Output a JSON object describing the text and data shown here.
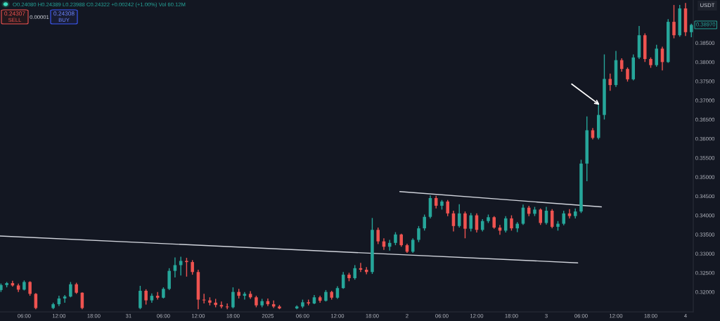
{
  "chart_data": {
    "type": "candlestick",
    "x": [
      "2024-12-30T02:00",
      "2024-12-30T03:00",
      "2024-12-30T04:00",
      "2024-12-30T05:00",
      "2024-12-30T06:00",
      "2024-12-30T07:00",
      "2024-12-30T08:00",
      "2024-12-30T11:00",
      "2024-12-30T12:00",
      "2024-12-30T13:00",
      "2024-12-30T14:00",
      "2024-12-30T15:00",
      "2024-12-30T16:00",
      "2024-12-31T02:00",
      "2024-12-31T03:00",
      "2024-12-31T04:00",
      "2024-12-31T05:00",
      "2024-12-31T06:00",
      "2024-12-31T07:00",
      "2024-12-31T08:00",
      "2024-12-31T09:00",
      "2024-12-31T10:00",
      "2024-12-31T11:00",
      "2024-12-31T12:00",
      "2024-12-31T13:00",
      "2024-12-31T14:00",
      "2024-12-31T15:00",
      "2024-12-31T16:00",
      "2024-12-31T17:00",
      "2024-12-31T18:00",
      "2024-12-31T19:00",
      "2024-12-31T20:00",
      "2024-12-31T21:00",
      "2024-12-31T22:00",
      "2024-12-31T23:00",
      "2025-01-01T00:00",
      "2025-01-01T01:00",
      "2025-01-01T02:00",
      "2025-01-01T05:00",
      "2025-01-01T06:00",
      "2025-01-01T07:00",
      "2025-01-01T08:00",
      "2025-01-01T09:00",
      "2025-01-01T10:00",
      "2025-01-01T11:00",
      "2025-01-01T12:00",
      "2025-01-01T13:00",
      "2025-01-01T14:00",
      "2025-01-01T15:00",
      "2025-01-01T16:00",
      "2025-01-01T17:00",
      "2025-01-01T18:00",
      "2025-01-01T19:00",
      "2025-01-01T20:00",
      "2025-01-01T21:00",
      "2025-01-01T22:00",
      "2025-01-01T23:00",
      "2025-01-02T00:00",
      "2025-01-02T01:00",
      "2025-01-02T02:00",
      "2025-01-02T03:00",
      "2025-01-02T04:00",
      "2025-01-02T05:00",
      "2025-01-02T06:00",
      "2025-01-02T07:00",
      "2025-01-02T08:00",
      "2025-01-02T09:00",
      "2025-01-02T10:00",
      "2025-01-02T11:00",
      "2025-01-02T12:00",
      "2025-01-02T13:00",
      "2025-01-02T14:00",
      "2025-01-02T15:00",
      "2025-01-02T16:00",
      "2025-01-02T17:00",
      "2025-01-02T18:00",
      "2025-01-02T19:00",
      "2025-01-02T20:00",
      "2025-01-02T21:00",
      "2025-01-02T22:00",
      "2025-01-02T23:00",
      "2025-01-03T00:00",
      "2025-01-03T01:00",
      "2025-01-03T02:00",
      "2025-01-03T03:00",
      "2025-01-03T04:00",
      "2025-01-03T05:00",
      "2025-01-03T06:00",
      "2025-01-03T07:00",
      "2025-01-03T08:00",
      "2025-01-03T09:00",
      "2025-01-03T10:00",
      "2025-01-03T11:00",
      "2025-01-03T12:00",
      "2025-01-03T13:00",
      "2025-01-03T14:00",
      "2025-01-03T15:00",
      "2025-01-03T16:00",
      "2025-01-03T17:00",
      "2025-01-03T18:00",
      "2025-01-03T19:00",
      "2025-01-03T20:00",
      "2025-01-03T21:00",
      "2025-01-03T22:00",
      "2025-01-03T23:00",
      "2025-01-04T00:00",
      "2025-01-04T01:00"
    ],
    "ohlc": [
      [
        0.3205,
        0.3222,
        0.32,
        0.3218
      ],
      [
        0.3218,
        0.3226,
        0.3212,
        0.3223
      ],
      [
        0.3223,
        0.3229,
        0.3214,
        0.3217
      ],
      [
        0.3217,
        0.3222,
        0.32,
        0.3206
      ],
      [
        0.3206,
        0.323,
        0.3204,
        0.3226
      ],
      [
        0.3226,
        0.3228,
        0.319,
        0.3195
      ],
      [
        0.3195,
        0.3197,
        0.3155,
        0.3158
      ],
      [
        0.3158,
        0.3172,
        0.3155,
        0.3168
      ],
      [
        0.3168,
        0.319,
        0.3163,
        0.3183
      ],
      [
        0.3183,
        0.3192,
        0.3172,
        0.3188
      ],
      [
        0.3188,
        0.3226,
        0.3186,
        0.322
      ],
      [
        0.322,
        0.3224,
        0.3195,
        0.3198
      ],
      [
        0.3198,
        0.3199,
        0.3155,
        0.3158
      ],
      [
        0.3158,
        0.3216,
        0.3155,
        0.3203
      ],
      [
        0.3203,
        0.3207,
        0.3167,
        0.3178
      ],
      [
        0.3178,
        0.3196,
        0.3172,
        0.319
      ],
      [
        0.319,
        0.32,
        0.318,
        0.3185
      ],
      [
        0.3185,
        0.3212,
        0.3183,
        0.3208
      ],
      [
        0.3208,
        0.3262,
        0.3205,
        0.3255
      ],
      [
        0.3255,
        0.329,
        0.3238,
        0.327
      ],
      [
        0.327,
        0.3292,
        0.3243,
        0.3281
      ],
      [
        0.3281,
        0.3289,
        0.324,
        0.3278
      ],
      [
        0.3278,
        0.3283,
        0.3245,
        0.3252
      ],
      [
        0.3252,
        0.3258,
        0.3155,
        0.318
      ],
      [
        0.318,
        0.3195,
        0.317,
        0.3178
      ],
      [
        0.3178,
        0.3186,
        0.3165,
        0.3172
      ],
      [
        0.3172,
        0.3182,
        0.316,
        0.3166
      ],
      [
        0.3166,
        0.3175,
        0.3157,
        0.3162
      ],
      [
        0.3162,
        0.317,
        0.3155,
        0.316
      ],
      [
        0.316,
        0.3212,
        0.3157,
        0.32
      ],
      [
        0.32,
        0.3208,
        0.3183,
        0.319
      ],
      [
        0.319,
        0.32,
        0.318,
        0.3195
      ],
      [
        0.3195,
        0.3202,
        0.3182,
        0.3186
      ],
      [
        0.3186,
        0.319,
        0.316,
        0.3165
      ],
      [
        0.3165,
        0.3182,
        0.316,
        0.3176
      ],
      [
        0.3176,
        0.3183,
        0.3163,
        0.3168
      ],
      [
        0.3168,
        0.3178,
        0.3158,
        0.3162
      ],
      [
        0.3162,
        0.3166,
        0.3155,
        0.3157
      ],
      [
        0.3157,
        0.3165,
        0.3155,
        0.3162
      ],
      [
        0.3162,
        0.318,
        0.3158,
        0.3173
      ],
      [
        0.3173,
        0.318,
        0.3165,
        0.317
      ],
      [
        0.317,
        0.3192,
        0.3168,
        0.3186
      ],
      [
        0.3186,
        0.319,
        0.3172,
        0.3177
      ],
      [
        0.3177,
        0.3205,
        0.3175,
        0.32
      ],
      [
        0.32,
        0.3203,
        0.318,
        0.3185
      ],
      [
        0.3185,
        0.3215,
        0.3182,
        0.321
      ],
      [
        0.321,
        0.3252,
        0.3208,
        0.3245
      ],
      [
        0.3245,
        0.325,
        0.3228,
        0.3236
      ],
      [
        0.3236,
        0.327,
        0.3232,
        0.3262
      ],
      [
        0.3262,
        0.3276,
        0.3252,
        0.3258
      ],
      [
        0.3258,
        0.3265,
        0.3246,
        0.3252
      ],
      [
        0.3252,
        0.3393,
        0.3247,
        0.3362
      ],
      [
        0.3362,
        0.3368,
        0.3325,
        0.3332
      ],
      [
        0.3332,
        0.334,
        0.331,
        0.3318
      ],
      [
        0.3318,
        0.3336,
        0.3308,
        0.3328
      ],
      [
        0.3328,
        0.3356,
        0.3322,
        0.335
      ],
      [
        0.335,
        0.3352,
        0.3318,
        0.3322
      ],
      [
        0.3322,
        0.3326,
        0.3302,
        0.3305
      ],
      [
        0.3305,
        0.334,
        0.3302,
        0.3336
      ],
      [
        0.3336,
        0.3372,
        0.333,
        0.3366
      ],
      [
        0.3366,
        0.3402,
        0.336,
        0.3396
      ],
      [
        0.3396,
        0.3452,
        0.3392,
        0.3445
      ],
      [
        0.3445,
        0.3451,
        0.3418,
        0.3425
      ],
      [
        0.3425,
        0.344,
        0.3415,
        0.3436
      ],
      [
        0.3436,
        0.344,
        0.3398,
        0.3405
      ],
      [
        0.3405,
        0.3412,
        0.3358,
        0.3372
      ],
      [
        0.3372,
        0.3429,
        0.3368,
        0.3405
      ],
      [
        0.3405,
        0.341,
        0.334,
        0.3365
      ],
      [
        0.3365,
        0.3406,
        0.3358,
        0.34
      ],
      [
        0.34,
        0.3405,
        0.3355,
        0.3362
      ],
      [
        0.3362,
        0.339,
        0.3358,
        0.3385
      ],
      [
        0.3385,
        0.3402,
        0.338,
        0.3395
      ],
      [
        0.3395,
        0.3398,
        0.3365,
        0.3368
      ],
      [
        0.3368,
        0.3375,
        0.3349,
        0.336
      ],
      [
        0.336,
        0.3398,
        0.3355,
        0.3392
      ],
      [
        0.3392,
        0.34,
        0.336,
        0.3366
      ],
      [
        0.3366,
        0.3382,
        0.3356,
        0.3378
      ],
      [
        0.3378,
        0.3428,
        0.3375,
        0.342
      ],
      [
        0.342,
        0.3425,
        0.3398,
        0.3404
      ],
      [
        0.3404,
        0.3422,
        0.3398,
        0.3415
      ],
      [
        0.3415,
        0.3418,
        0.3375,
        0.338
      ],
      [
        0.338,
        0.3422,
        0.3376,
        0.3412
      ],
      [
        0.3412,
        0.3416,
        0.3366,
        0.337
      ],
      [
        0.337,
        0.3385,
        0.336,
        0.3378
      ],
      [
        0.3378,
        0.3412,
        0.3374,
        0.3405
      ],
      [
        0.3405,
        0.3416,
        0.3392,
        0.3398
      ],
      [
        0.3398,
        0.3418,
        0.3392,
        0.341
      ],
      [
        0.341,
        0.3545,
        0.3406,
        0.3535
      ],
      [
        0.3535,
        0.3658,
        0.3489,
        0.3622
      ],
      [
        0.3622,
        0.3628,
        0.3598,
        0.3602
      ],
      [
        0.3602,
        0.3693,
        0.3598,
        0.3662
      ],
      [
        0.3662,
        0.382,
        0.365,
        0.3756
      ],
      [
        0.3756,
        0.377,
        0.3725,
        0.374
      ],
      [
        0.374,
        0.3829,
        0.3735,
        0.3805
      ],
      [
        0.3805,
        0.381,
        0.3775,
        0.3782
      ],
      [
        0.3782,
        0.3786,
        0.3749,
        0.3755
      ],
      [
        0.3755,
        0.382,
        0.3752,
        0.3812
      ],
      [
        0.3812,
        0.3894,
        0.3808,
        0.387
      ],
      [
        0.387,
        0.3875,
        0.38,
        0.3808
      ],
      [
        0.3808,
        0.3812,
        0.3785,
        0.3792
      ],
      [
        0.3792,
        0.3845,
        0.3788,
        0.3835
      ],
      [
        0.3835,
        0.384,
        0.3778,
        0.38
      ],
      [
        0.38,
        0.3912,
        0.3798,
        0.3905
      ],
      [
        0.3905,
        0.3949,
        0.3862,
        0.387
      ],
      [
        0.387,
        0.3949,
        0.3866,
        0.394
      ],
      [
        0.394,
        0.3954,
        0.3868,
        0.3878
      ],
      [
        0.3878,
        0.39,
        0.3865,
        0.3897
      ]
    ],
    "colors": [
      "#26a69a",
      "#26a69a",
      "#ef5350",
      "#ef5350",
      "#26a69a",
      "#ef5350",
      "#ef5350",
      "#26a69a",
      "#26a69a",
      "#26a69a",
      "#26a69a",
      "#ef5350",
      "#ef5350",
      "#26a69a",
      "#ef5350",
      "#26a69a",
      "#ef5350",
      "#26a69a",
      "#26a69a",
      "#26a69a",
      "#26a69a",
      "#ef5350",
      "#ef5350",
      "#ef5350",
      "#ef5350",
      "#ef5350",
      "#ef5350",
      "#ef5350",
      "#ef5350",
      "#26a69a",
      "#ef5350",
      "#26a69a",
      "#ef5350",
      "#ef5350",
      "#26a69a",
      "#ef5350",
      "#ef5350",
      "#ef5350",
      "#26a69a",
      "#26a69a",
      "#ef5350",
      "#26a69a",
      "#ef5350",
      "#26a69a",
      "#ef5350",
      "#26a69a",
      "#26a69a",
      "#ef5350",
      "#26a69a",
      "#ef5350",
      "#ef5350",
      "#26a69a",
      "#ef5350",
      "#ef5350",
      "#26a69a",
      "#26a69a",
      "#ef5350",
      "#ef5350",
      "#26a69a",
      "#26a69a",
      "#26a69a",
      "#26a69a",
      "#ef5350",
      "#26a69a",
      "#ef5350",
      "#ef5350",
      "#26a69a",
      "#ef5350",
      "#26a69a",
      "#ef5350",
      "#26a69a",
      "#26a69a",
      "#ef5350",
      "#ef5350",
      "#26a69a",
      "#ef5350",
      "#26a69a",
      "#26a69a",
      "#ef5350",
      "#26a69a",
      "#ef5350",
      "#26a69a",
      "#ef5350",
      "#26a69a",
      "#26a69a",
      "#ef5350",
      "#26a69a",
      "#26a69a",
      "#26a69a",
      "#ef5350",
      "#26a69a",
      "#26a69a",
      "#ef5350",
      "#26a69a",
      "#ef5350",
      "#ef5350",
      "#26a69a",
      "#26a69a",
      "#ef5350",
      "#ef5350",
      "#26a69a",
      "#ef5350",
      "#26a69a",
      "#ef5350",
      "#26a69a",
      "#ef5350",
      "#26a69a"
    ],
    "series": [
      {
        "type": "line",
        "color": "#d1d4dc",
        "x": [
          "2024-12-30T01:50",
          "2025-01-03T05:25"
        ],
        "values": [
          0.3346,
          0.3276
        ]
      },
      {
        "type": "line",
        "color": "#d1d4dc",
        "x": [
          "2025-01-01T22:45",
          "2025-01-03T09:30"
        ],
        "values": [
          0.3462,
          0.3422
        ]
      }
    ],
    "xlim": [
      "2024-12-30T01:50",
      "2025-01-04T01:20"
    ],
    "xticks": [
      {
        "value": "2024-12-30T06:00",
        "label": "06:00"
      },
      {
        "value": "2024-12-30T12:00",
        "label": "12:00"
      },
      {
        "value": "2024-12-30T18:00",
        "label": "18:00"
      },
      {
        "value": "2024-12-31T00:00",
        "label": "31"
      },
      {
        "value": "2024-12-31T06:00",
        "label": "06:00"
      },
      {
        "value": "2024-12-31T12:00",
        "label": "12:00"
      },
      {
        "value": "2024-12-31T18:00",
        "label": "18:00"
      },
      {
        "value": "2025-01-01T00:00",
        "label": "2025"
      },
      {
        "value": "2025-01-01T06:00",
        "label": "06:00"
      },
      {
        "value": "2025-01-01T12:00",
        "label": "12:00"
      },
      {
        "value": "2025-01-01T18:00",
        "label": "18:00"
      },
      {
        "value": "2025-01-02T00:00",
        "label": "2"
      },
      {
        "value": "2025-01-02T06:00",
        "label": "06:00"
      },
      {
        "value": "2025-01-02T12:00",
        "label": "12:00"
      },
      {
        "value": "2025-01-02T18:00",
        "label": "18:00"
      },
      {
        "value": "2025-01-03T00:00",
        "label": "3"
      },
      {
        "value": "2025-01-03T06:00",
        "label": "06:00"
      },
      {
        "value": "2025-01-03T12:00",
        "label": "12:00"
      },
      {
        "value": "2025-01-03T18:00",
        "label": "18:00"
      },
      {
        "value": "2025-01-04T00:00",
        "label": "4"
      }
    ],
    "ylim": [
      0.3148,
      0.3962
    ],
    "yticks": [
      {
        "value": 0.32,
        "label": "0.32000"
      },
      {
        "value": 0.325,
        "label": "0.32500"
      },
      {
        "value": 0.33,
        "label": "0.33000"
      },
      {
        "value": 0.335,
        "label": "0.33500"
      },
      {
        "value": 0.34,
        "label": "0.34000"
      },
      {
        "value": 0.345,
        "label": "0.34500"
      },
      {
        "value": 0.35,
        "label": "0.35000"
      },
      {
        "value": 0.355,
        "label": "0.35500"
      },
      {
        "value": 0.36,
        "label": "0.36000"
      },
      {
        "value": 0.365,
        "label": "0.36500"
      },
      {
        "value": 0.37,
        "label": "0.37000"
      },
      {
        "value": 0.375,
        "label": "0.37500"
      },
      {
        "value": 0.38,
        "label": "0.38000"
      },
      {
        "value": 0.385,
        "label": "0.38500"
      }
    ],
    "annotations": [
      "O0.24080 H0.24389 L0.23988 C0.24322 +0.00242 (+1.00%) Vol 60.12M",
      "0.24307",
      "SELL",
      "0.00001",
      "0.24308",
      "BUY",
      "USDT",
      {
        "text": "0.38970",
        "y": 0.3897
      }
    ]
  }
}
